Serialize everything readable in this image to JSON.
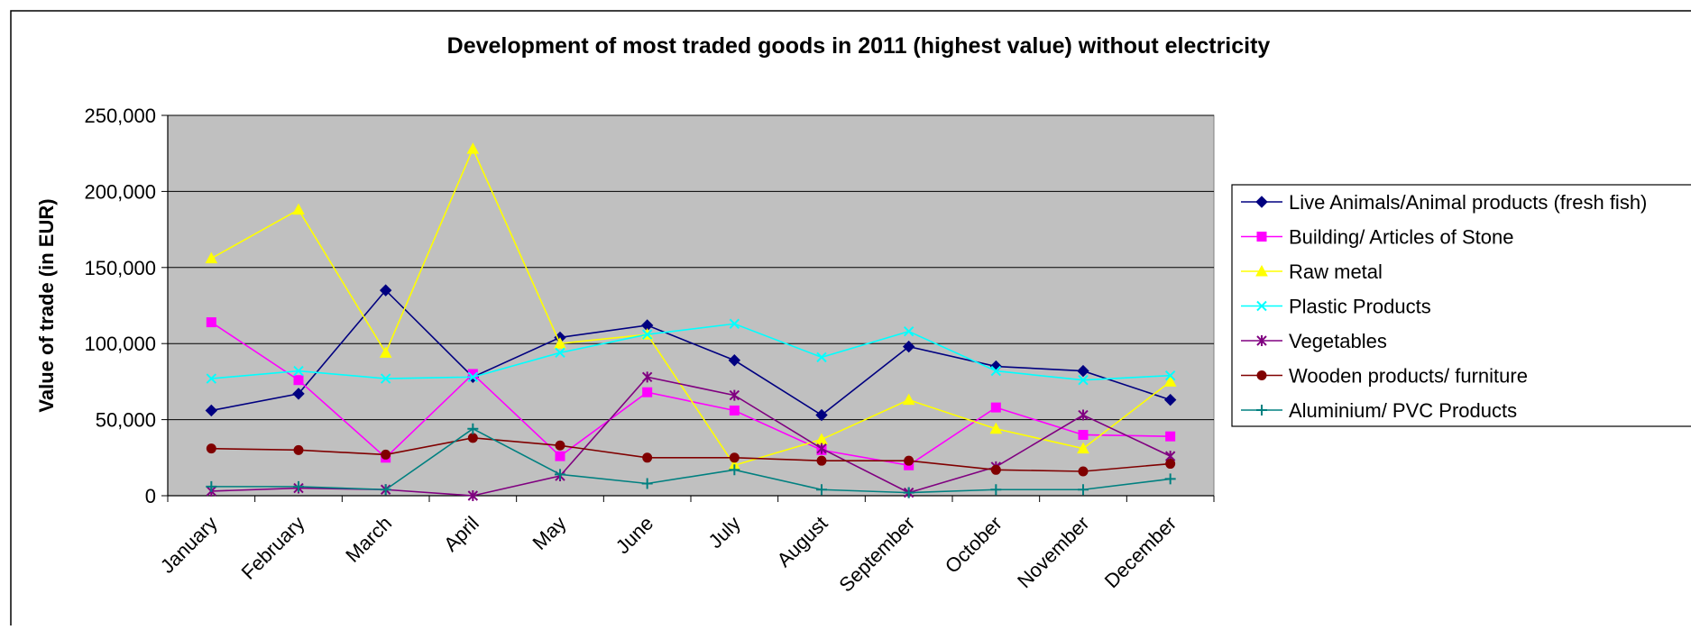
{
  "chart_data": {
    "type": "line",
    "title": "Development of most traded goods in 2011 (highest value) without electricity",
    "ylabel": "Value of trade (in EUR)",
    "xlabel": "",
    "ylim": [
      0,
      250000
    ],
    "yticks": [
      0,
      50000,
      100000,
      150000,
      200000,
      250000
    ],
    "ytick_labels": [
      "0",
      "50,000",
      "100,000",
      "150,000",
      "200,000",
      "250,000"
    ],
    "grid": true,
    "legend_position": "right",
    "categories": [
      "January",
      "February",
      "March",
      "April",
      "May",
      "June",
      "July",
      "August",
      "September",
      "October",
      "November",
      "December"
    ],
    "series": [
      {
        "name": "Live Animals/Animal products (fresh fish)",
        "color": "#000080",
        "marker": "diamond",
        "values": [
          56000,
          67000,
          135000,
          78000,
          104000,
          112000,
          89000,
          53000,
          98000,
          85000,
          82000,
          63000
        ]
      },
      {
        "name": "Building/ Articles of Stone",
        "color": "#ff00ff",
        "marker": "square",
        "values": [
          114000,
          76000,
          25000,
          80000,
          26000,
          68000,
          56000,
          30000,
          20000,
          58000,
          40000,
          39000
        ]
      },
      {
        "name": "Raw metal",
        "color": "#ffff00",
        "marker": "triangle",
        "values": [
          156000,
          188000,
          94000,
          228000,
          100000,
          106000,
          20000,
          37000,
          63000,
          44000,
          31000,
          75000
        ]
      },
      {
        "name": "Plastic Products",
        "color": "#00ffff",
        "marker": "x",
        "values": [
          77000,
          82000,
          77000,
          78000,
          94000,
          106000,
          113000,
          91000,
          108000,
          82000,
          76000,
          79000
        ]
      },
      {
        "name": "Vegetables",
        "color": "#800080",
        "marker": "star",
        "values": [
          3000,
          5000,
          4000,
          0,
          13000,
          78000,
          66000,
          31000,
          2000,
          19000,
          53000,
          26000
        ]
      },
      {
        "name": "Wooden products/ furniture",
        "color": "#800000",
        "marker": "circle",
        "values": [
          31000,
          30000,
          27000,
          38000,
          33000,
          25000,
          25000,
          23000,
          23000,
          17000,
          16000,
          21000
        ]
      },
      {
        "name": "Aluminium/ PVC Products",
        "color": "#008080",
        "marker": "plus",
        "values": [
          6000,
          6000,
          4000,
          44000,
          14000,
          8000,
          17000,
          4000,
          2000,
          4000,
          4000,
          11000
        ]
      }
    ]
  }
}
